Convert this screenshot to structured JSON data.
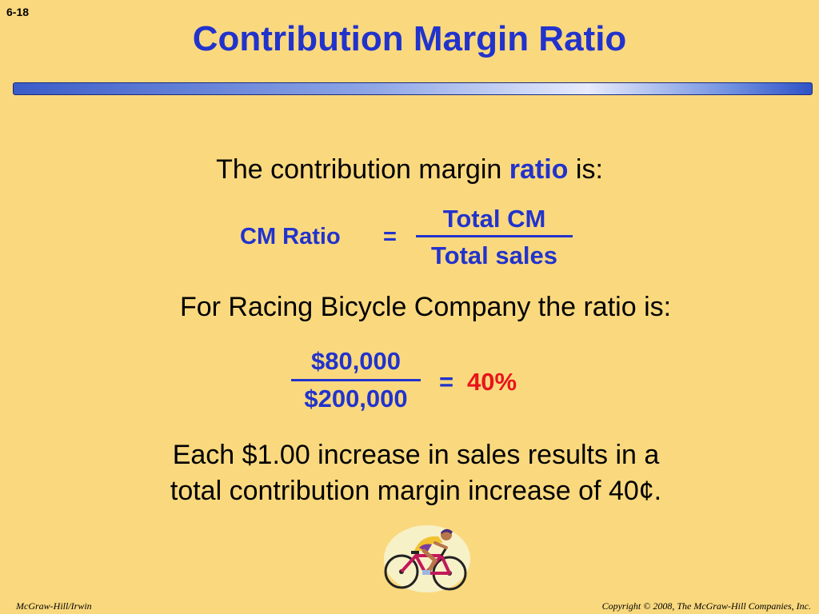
{
  "slide_number": "6-18",
  "title": "Contribution Margin Ratio",
  "intro": {
    "before": "The contribution margin ",
    "highlight": "ratio",
    "after": " is:"
  },
  "formula": {
    "label": "CM Ratio",
    "equals": "=",
    "numerator": "Total CM",
    "denominator": "Total sales"
  },
  "company_line": "For Racing Bicycle Company the ratio is:",
  "calculation": {
    "numerator": "$80,000",
    "denominator": "$200,000",
    "equals": "=",
    "result": "40%"
  },
  "explanation": {
    "line1": "Each $1.00 increase in sales results in a",
    "line2": "total contribution margin increase of 40¢."
  },
  "footer": {
    "left": "McGraw-Hill/Irwin",
    "right": "Copyright © 2008, The McGraw-Hill Companies, Inc."
  },
  "colors": {
    "background": "#FAD97E",
    "title": "#2233CC",
    "emphasis": "#2233CC",
    "result": "#E8141B"
  },
  "icons": [
    "cyclist-clipart"
  ]
}
